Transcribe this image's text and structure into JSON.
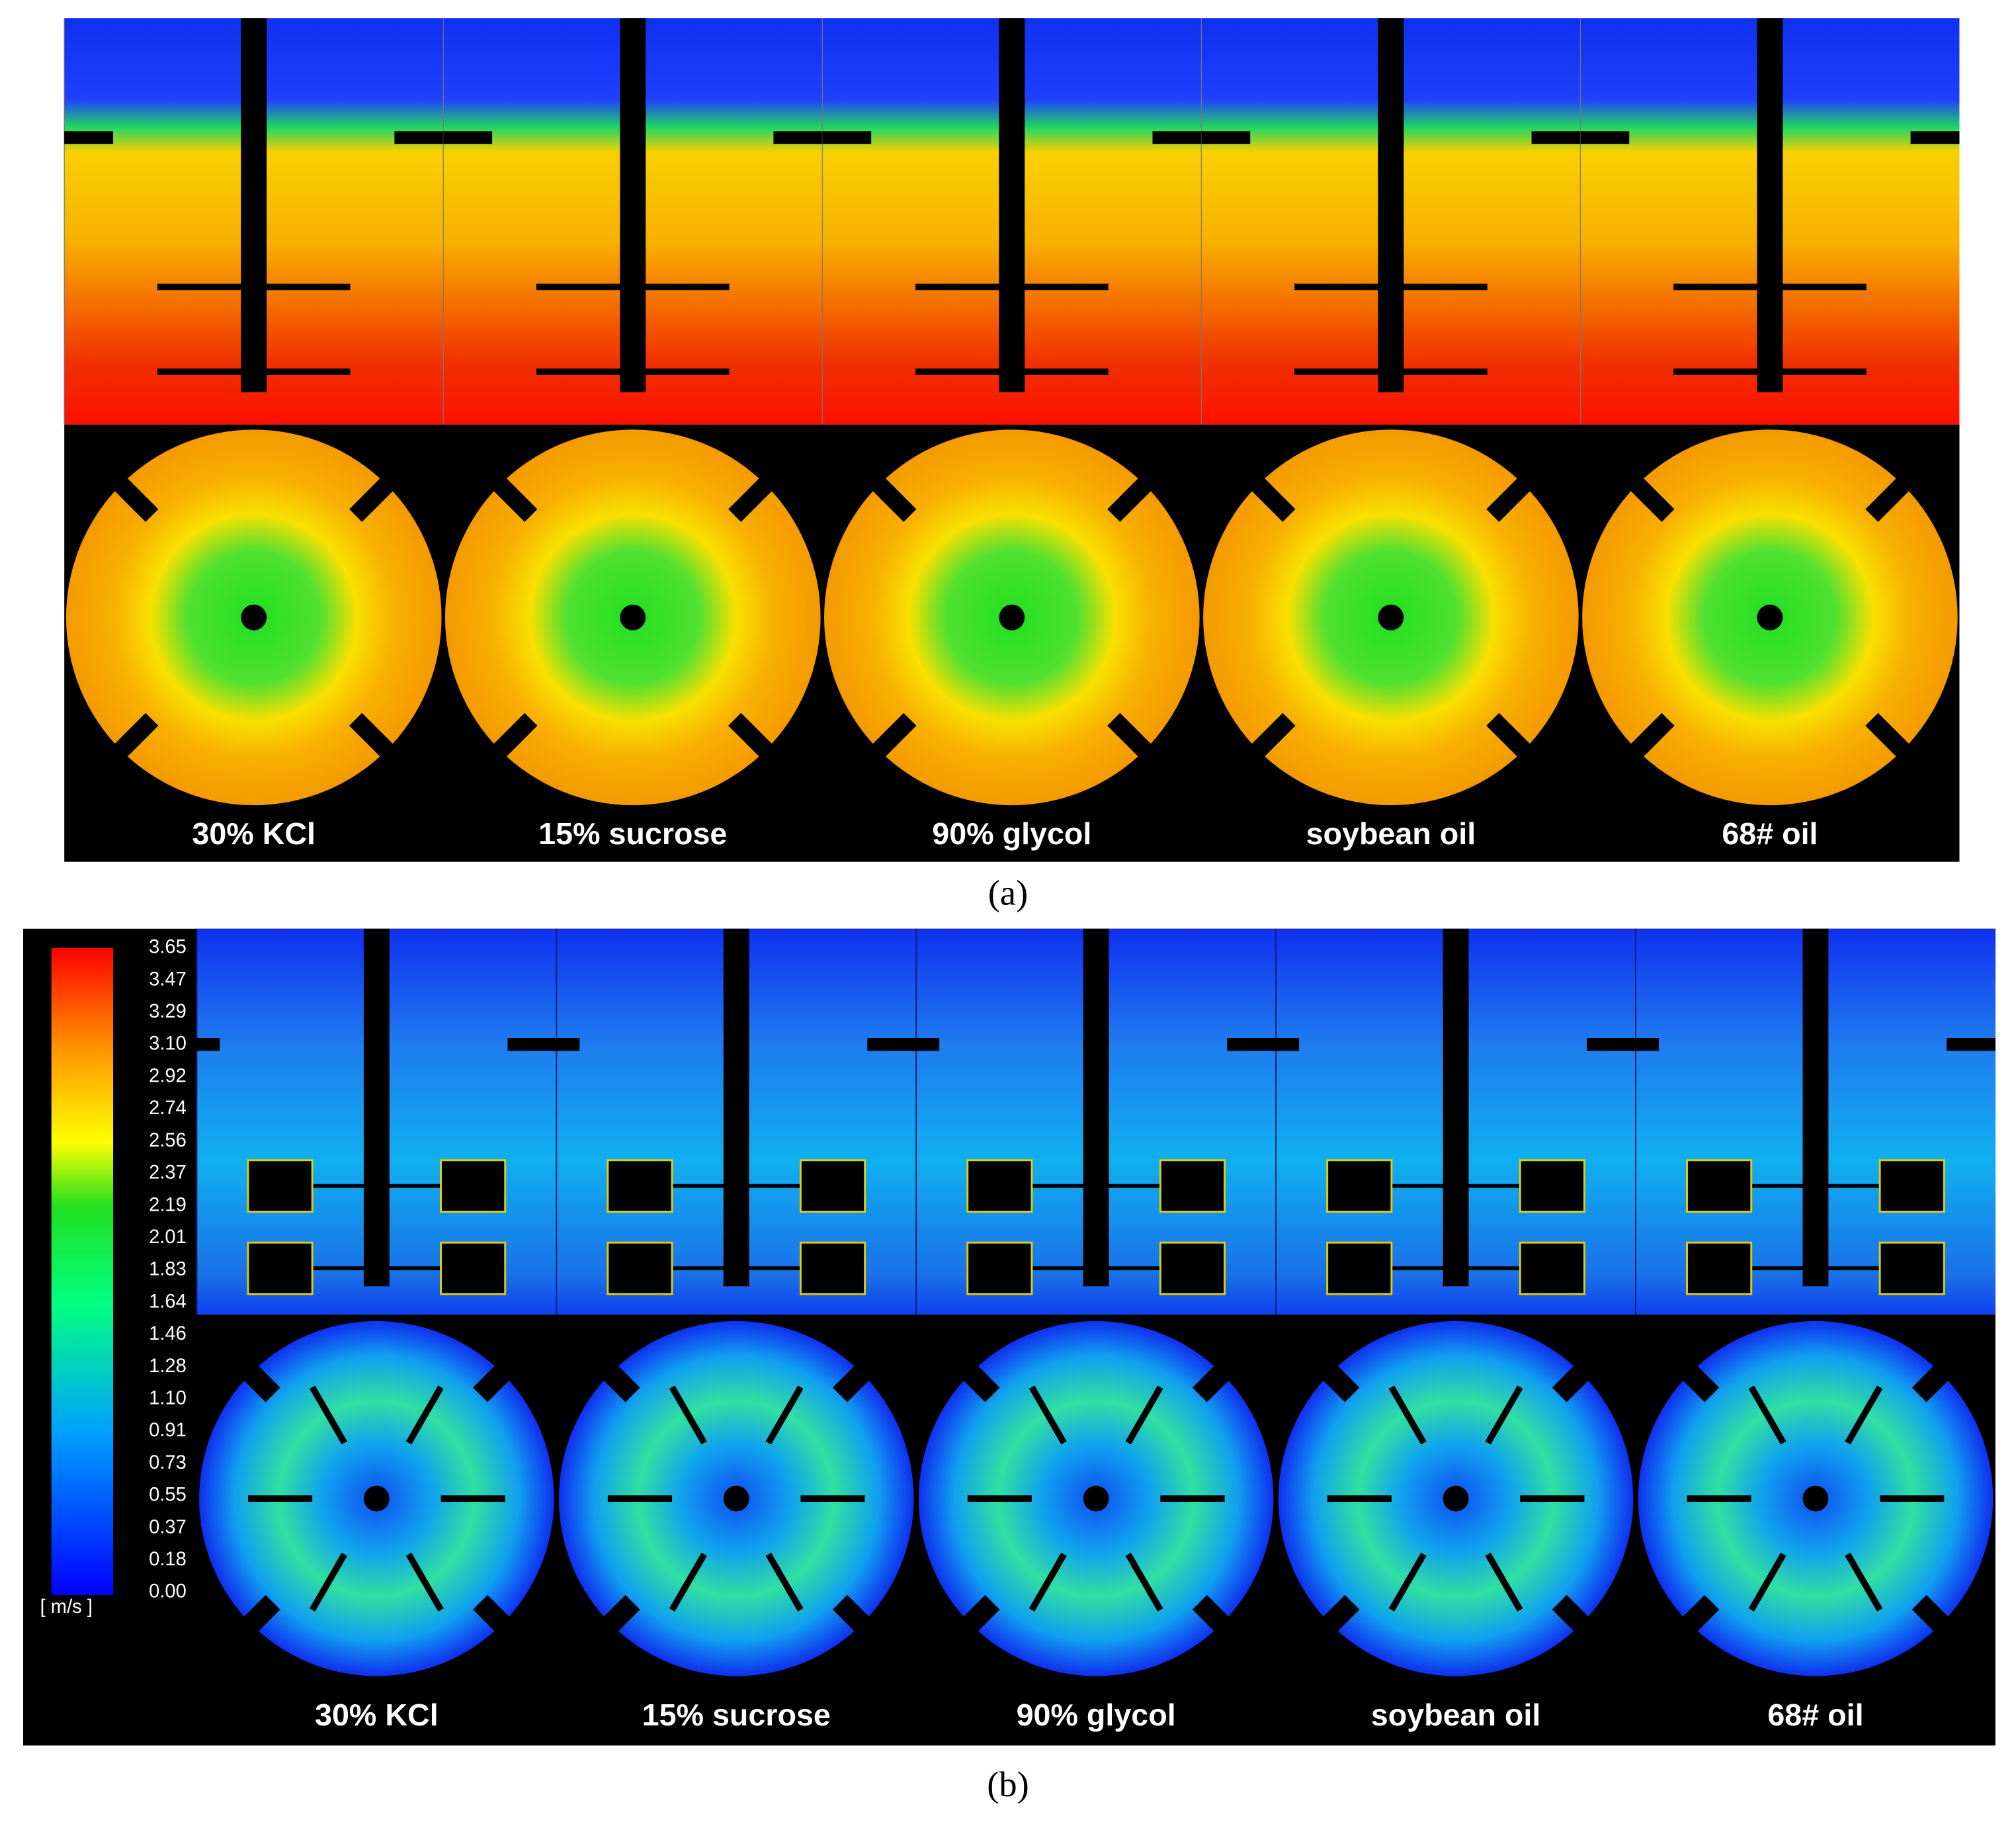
{
  "panels": [
    {
      "label": "(a)",
      "cases": [
        "30% KCl",
        "15% sucrose",
        "90% glycol",
        "soybean oil",
        "68# oil"
      ]
    },
    {
      "label": "(b)",
      "cases": [
        "30% KCl",
        "15% sucrose",
        "90% glycol",
        "soybean oil",
        "68# oil"
      ],
      "colorbar": {
        "ticks": [
          "3.65",
          "3.47",
          "3.29",
          "3.10",
          "2.92",
          "2.74",
          "2.56",
          "2.37",
          "2.19",
          "2.01",
          "1.83",
          "1.64",
          "1.46",
          "1.28",
          "1.10",
          "0.91",
          "0.73",
          "0.55",
          "0.37",
          "0.18",
          "0.00"
        ],
        "unit": "[ m/s ]"
      }
    }
  ]
}
